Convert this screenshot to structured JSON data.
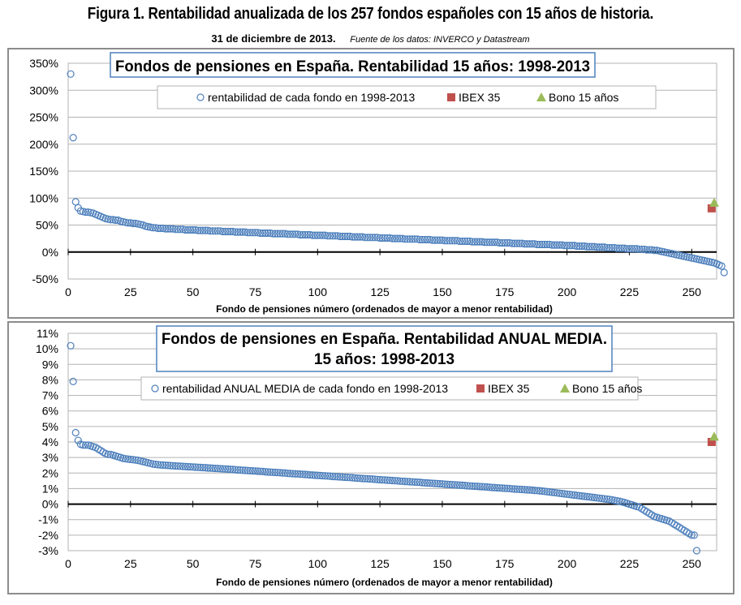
{
  "figure": {
    "title": "Figura 1. Rentabilidad anualizada de los 257 fondos españoles con 15 años de historia.",
    "date": "31 de diciembre de 2013.",
    "source": "Fuente de los datos: INVERCO  y Datastream"
  },
  "chart_data": [
    {
      "type": "scatter",
      "title": "Fondos de pensiones en España. Rentabilidad 15 años: 1998-2013",
      "xlabel": "Fondo de pensiones número (ordenados de mayor a menor rentabilidad)",
      "ylabel": "",
      "xlim": [
        0,
        260
      ],
      "ylim": [
        -50,
        350
      ],
      "x_ticks": [
        0,
        25,
        50,
        75,
        100,
        125,
        150,
        175,
        200,
        225,
        250
      ],
      "y_ticks": [
        -50,
        0,
        50,
        100,
        150,
        200,
        250,
        300,
        350
      ],
      "y_tick_labels": [
        "-50%",
        "0%",
        "50%",
        "100%",
        "150%",
        "200%",
        "250%",
        "300%",
        "350%"
      ],
      "grid": "horizontal",
      "legend_position": "top-center",
      "series": [
        {
          "name": "rentabilidad de cada fondo en 1998-2013",
          "marker": "circle-open",
          "color": "#4f81bd",
          "x_start": 1,
          "values": [
            330,
            212,
            93,
            82,
            76,
            75,
            74,
            74,
            73,
            72,
            70,
            68,
            66,
            64,
            62,
            61,
            60,
            60,
            59,
            59,
            57,
            56,
            55,
            54,
            54,
            53,
            53,
            52,
            51,
            50,
            48,
            47,
            46,
            45,
            45,
            44,
            44,
            44,
            43,
            43,
            43,
            43,
            42,
            42,
            42,
            42,
            41,
            41,
            41,
            41,
            41,
            40,
            40,
            40,
            40,
            40,
            39,
            39,
            39,
            39,
            39,
            38,
            38,
            38,
            38,
            38,
            37,
            37,
            37,
            37,
            37,
            36,
            36,
            36,
            36,
            36,
            35,
            35,
            35,
            35,
            35,
            34,
            34,
            34,
            34,
            34,
            34,
            33,
            33,
            33,
            33,
            33,
            32,
            32,
            32,
            32,
            32,
            31,
            31,
            31,
            31,
            31,
            31,
            30,
            30,
            30,
            30,
            30,
            29,
            29,
            29,
            29,
            29,
            28,
            28,
            28,
            28,
            28,
            27,
            27,
            27,
            27,
            27,
            27,
            26,
            26,
            26,
            26,
            26,
            25,
            25,
            25,
            25,
            25,
            24,
            24,
            24,
            24,
            24,
            24,
            23,
            23,
            23,
            23,
            23,
            22,
            22,
            22,
            22,
            22,
            21,
            21,
            21,
            21,
            21,
            21,
            20,
            20,
            20,
            20,
            20,
            19,
            19,
            19,
            19,
            19,
            18,
            18,
            18,
            18,
            18,
            18,
            17,
            17,
            17,
            17,
            17,
            16,
            16,
            16,
            16,
            16,
            15,
            15,
            15,
            15,
            15,
            14,
            14,
            14,
            14,
            14,
            14,
            13,
            13,
            13,
            13,
            13,
            12,
            12,
            12,
            12,
            12,
            11,
            11,
            11,
            11,
            10,
            10,
            10,
            10,
            9,
            9,
            9,
            9,
            8,
            8,
            8,
            8,
            7,
            7,
            7,
            7,
            6,
            6,
            6,
            6,
            6,
            5,
            5,
            5,
            4,
            4,
            4,
            3,
            3,
            2,
            1,
            0,
            -1,
            -2,
            -3,
            -4,
            -5,
            -6,
            -7,
            -8,
            -9,
            -10,
            -11,
            -12,
            -13,
            -14,
            -15,
            -16,
            -17,
            -18,
            -19,
            -20,
            -22,
            -24,
            -26,
            -38
          ]
        },
        {
          "name": "IBEX 35",
          "marker": "square",
          "color": "#c0504d",
          "points": [
            {
              "x": 258,
              "y": 81
            }
          ]
        },
        {
          "name": "Bono 15 años",
          "marker": "triangle",
          "color": "#9bbb59",
          "points": [
            {
              "x": 259,
              "y": 90
            }
          ]
        }
      ]
    },
    {
      "type": "scatter",
      "title": "Fondos de pensiones en España. Rentabilidad ANUAL MEDIA.",
      "title_line2": "15 años: 1998-2013",
      "xlabel": "Fondo de pensiones número (ordenados de mayor a menor rentabilidad)",
      "ylabel": "",
      "xlim": [
        0,
        260
      ],
      "ylim": [
        -3,
        11
      ],
      "x_ticks": [
        0,
        25,
        50,
        75,
        100,
        125,
        150,
        175,
        200,
        225,
        250
      ],
      "y_ticks": [
        -3,
        -2,
        -1,
        0,
        1,
        2,
        3,
        4,
        5,
        6,
        7,
        8,
        9,
        10,
        11
      ],
      "y_tick_labels": [
        "-3%",
        "-2%",
        "-1%",
        "0%",
        "1%",
        "2%",
        "3%",
        "4%",
        "5%",
        "6%",
        "7%",
        "8%",
        "9%",
        "10%",
        "11%"
      ],
      "grid": "horizontal",
      "legend_position": "top-center",
      "series": [
        {
          "name": "rentabilidad ANUAL MEDIA de cada fondo en 1998-2013",
          "marker": "circle-open",
          "color": "#4f81bd",
          "x_start": 1,
          "values": [
            10.2,
            7.9,
            4.6,
            4.1,
            3.85,
            3.8,
            3.8,
            3.8,
            3.75,
            3.7,
            3.65,
            3.55,
            3.45,
            3.35,
            3.25,
            3.2,
            3.2,
            3.15,
            3.1,
            3.05,
            3.0,
            2.95,
            2.92,
            2.9,
            2.88,
            2.86,
            2.84,
            2.82,
            2.78,
            2.74,
            2.7,
            2.66,
            2.62,
            2.58,
            2.56,
            2.54,
            2.52,
            2.51,
            2.5,
            2.49,
            2.48,
            2.47,
            2.46,
            2.45,
            2.44,
            2.43,
            2.42,
            2.41,
            2.4,
            2.39,
            2.38,
            2.37,
            2.36,
            2.35,
            2.34,
            2.33,
            2.32,
            2.31,
            2.3,
            2.29,
            2.28,
            2.27,
            2.26,
            2.25,
            2.24,
            2.23,
            2.22,
            2.2,
            2.19,
            2.18,
            2.17,
            2.16,
            2.15,
            2.14,
            2.13,
            2.12,
            2.11,
            2.1,
            2.08,
            2.07,
            2.06,
            2.05,
            2.04,
            2.03,
            2.02,
            2.01,
            2.0,
            1.98,
            1.97,
            1.96,
            1.95,
            1.94,
            1.93,
            1.92,
            1.91,
            1.9,
            1.88,
            1.87,
            1.86,
            1.85,
            1.84,
            1.83,
            1.82,
            1.81,
            1.8,
            1.78,
            1.77,
            1.76,
            1.75,
            1.74,
            1.73,
            1.72,
            1.71,
            1.7,
            1.68,
            1.67,
            1.66,
            1.65,
            1.64,
            1.63,
            1.62,
            1.61,
            1.6,
            1.58,
            1.57,
            1.56,
            1.55,
            1.54,
            1.53,
            1.52,
            1.51,
            1.5,
            1.48,
            1.47,
            1.46,
            1.45,
            1.44,
            1.43,
            1.42,
            1.41,
            1.4,
            1.38,
            1.37,
            1.36,
            1.35,
            1.34,
            1.33,
            1.32,
            1.31,
            1.3,
            1.28,
            1.27,
            1.26,
            1.25,
            1.24,
            1.23,
            1.22,
            1.21,
            1.2,
            1.18,
            1.17,
            1.16,
            1.15,
            1.14,
            1.13,
            1.12,
            1.11,
            1.1,
            1.08,
            1.07,
            1.06,
            1.05,
            1.04,
            1.03,
            1.02,
            1.01,
            1.0,
            0.98,
            0.97,
            0.96,
            0.95,
            0.94,
            0.93,
            0.92,
            0.91,
            0.9,
            0.88,
            0.87,
            0.86,
            0.84,
            0.82,
            0.8,
            0.78,
            0.76,
            0.74,
            0.72,
            0.7,
            0.68,
            0.66,
            0.64,
            0.62,
            0.6,
            0.58,
            0.56,
            0.54,
            0.52,
            0.5,
            0.48,
            0.46,
            0.44,
            0.42,
            0.4,
            0.38,
            0.36,
            0.34,
            0.32,
            0.3,
            0.27,
            0.24,
            0.21,
            0.18,
            0.14,
            0.1,
            0.05,
            0.0,
            -0.05,
            -0.1,
            -0.15,
            -0.2,
            -0.3,
            -0.4,
            -0.5,
            -0.6,
            -0.7,
            -0.8,
            -0.85,
            -0.9,
            -0.95,
            -1.0,
            -1.05,
            -1.1,
            -1.2,
            -1.3,
            -1.4,
            -1.5,
            -1.6,
            -1.7,
            -1.8,
            -1.9,
            -2.0,
            -2.0,
            -3.0
          ]
        },
        {
          "name": "IBEX 35",
          "marker": "square",
          "color": "#c0504d",
          "points": [
            {
              "x": 258,
              "y": 4.0
            }
          ]
        },
        {
          "name": "Bono 15 años",
          "marker": "triangle",
          "color": "#9bbb59",
          "points": [
            {
              "x": 259,
              "y": 4.3
            }
          ]
        }
      ]
    }
  ]
}
